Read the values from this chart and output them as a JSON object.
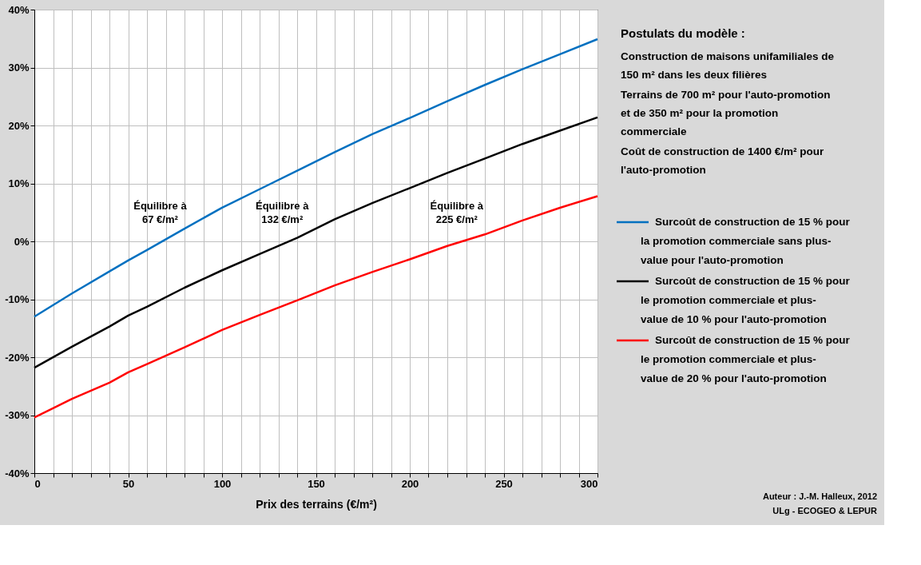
{
  "chart_data": {
    "type": "line",
    "xlabel": "Prix des terrains (€/m²)",
    "x": [
      0,
      20,
      40,
      50,
      60,
      80,
      100,
      120,
      140,
      160,
      180,
      200,
      220,
      240,
      260,
      280,
      300
    ],
    "series": [
      {
        "name": "Surcoût de construction de 15 % pour la promotion commerciale sans plus-value pour l'auto-promotion",
        "color": "#0070c0",
        "values": [
          -13,
          -9,
          -5.2,
          -3.3,
          -1.5,
          2.2,
          5.8,
          9.0,
          12.2,
          15.4,
          18.5,
          21.3,
          24.2,
          27,
          29.7,
          32.3,
          34.9
        ]
      },
      {
        "name": "Surcoût de construction de 15 % pour le promotion commerciale et plus-value de 10 % pour l'auto-promotion",
        "color": "#000000",
        "values": [
          -21.8,
          -18.2,
          -14.7,
          -12.8,
          -11.3,
          -8,
          -5,
          -2.2,
          0.6,
          3.8,
          6.6,
          9.2,
          11.8,
          14.3,
          16.8,
          19.1,
          21.4
        ]
      },
      {
        "name": "Surcoût de construction de 15 % pour le promotion commerciale et plus-value de 20 % pour l'auto-promotion",
        "color": "#ff0000",
        "values": [
          -30.4,
          -27.2,
          -24.4,
          -22.6,
          -21.2,
          -18.3,
          -15.3,
          -12.7,
          -10.2,
          -7.6,
          -5.3,
          -3.1,
          -0.8,
          1.2,
          3.6,
          5.8,
          7.8
        ]
      }
    ],
    "xlim": [
      0,
      300
    ],
    "xticks": [
      0,
      {
        "value": 10,
        "label": null
      },
      {
        "value": 20,
        "label": null
      },
      {
        "value": 30,
        "label": null
      },
      {
        "value": 40,
        "label": null
      },
      50,
      {
        "value": 60,
        "label": null
      },
      {
        "value": 70,
        "label": null
      },
      {
        "value": 80,
        "label": null
      },
      {
        "value": 90,
        "label": null
      },
      100,
      {
        "value": 110,
        "label": null
      },
      {
        "value": 120,
        "label": null
      },
      {
        "value": 130,
        "label": null
      },
      {
        "value": 140,
        "label": null
      },
      150,
      {
        "value": 160,
        "label": null
      },
      {
        "value": 170,
        "label": null
      },
      {
        "value": 180,
        "label": null
      },
      {
        "value": 190,
        "label": null
      },
      200,
      {
        "value": 210,
        "label": null
      },
      {
        "value": 220,
        "label": null
      },
      {
        "value": 230,
        "label": null
      },
      {
        "value": 240,
        "label": null
      },
      250,
      {
        "value": 260,
        "label": null
      },
      {
        "value": 270,
        "label": null
      },
      {
        "value": 280,
        "label": null
      },
      {
        "value": 290,
        "label": null
      },
      300
    ],
    "ylim": [
      -40,
      40
    ],
    "yticks": [
      {
        "value": -40,
        "label": "-40%"
      },
      {
        "value": -30,
        "label": "-30%"
      },
      {
        "value": -20,
        "label": "-20%"
      },
      {
        "value": -10,
        "label": "-10%"
      },
      {
        "value": 0,
        "label": "0%"
      },
      {
        "value": 10,
        "label": "10%"
      },
      {
        "value": 20,
        "label": "20%"
      },
      {
        "value": 30,
        "label": "30%"
      },
      {
        "value": 40,
        "label": "40%"
      }
    ],
    "grid": true,
    "legend": "right",
    "annotations": [
      "Postulats du modèle :",
      "Construction de maisons unifamiliales de 150 m² dans les deux filières",
      "Terrains de 700 m² pour l'auto-promotion et de 350 m² pour la promotion commerciale",
      "Coût de construction de 1400 €/m² pour l'auto-promotion",
      {
        "text": "Équilibre à 67 €/m²",
        "x": 67,
        "y": 0
      },
      {
        "text": "Équilibre à 132 €/m²",
        "x": 132,
        "y": 0
      },
      {
        "text": "Équilibre à 225 €/m²",
        "x": 225,
        "y": 0
      },
      "Auteur : J.-M. Halleux, 2012",
      "ULg - ECOGEO & LEPUR"
    ]
  }
}
